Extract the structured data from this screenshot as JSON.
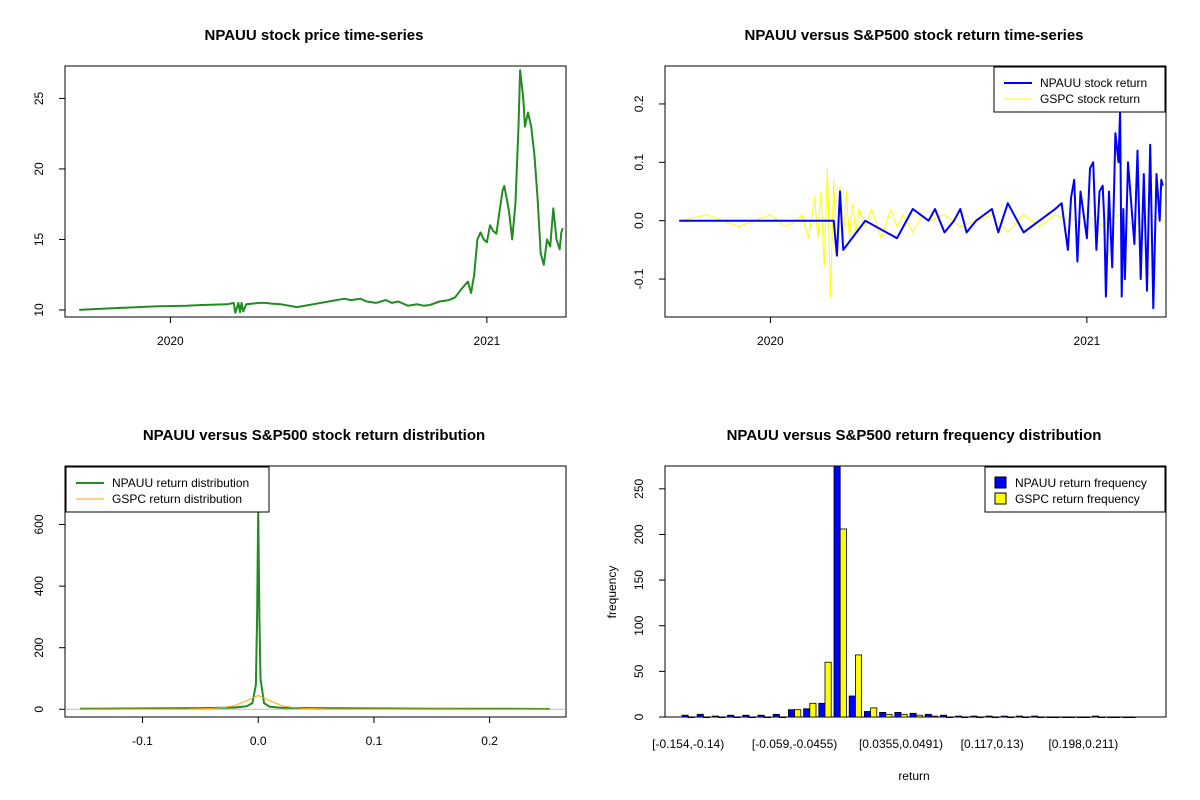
{
  "chart_data": [
    {
      "id": "p1",
      "type": "line",
      "title": "NPAUU stock price time-series",
      "xlabel": "",
      "ylabel": "",
      "xlim": [
        2019.667,
        2021.25
      ],
      "ylim": [
        9.5,
        27.3
      ],
      "x_ticks": [
        2020,
        2021
      ],
      "x_tick_labels": [
        "2020",
        "2021"
      ],
      "y_ticks": [
        10,
        15,
        20,
        25
      ],
      "series": [
        {
          "name": "NPAUU stock price",
          "color": "#228B22",
          "x": [
            2019.712,
            2019.75,
            2019.85,
            2019.95,
            2020.05,
            2020.1,
            2020.18,
            2020.2,
            2020.205,
            2020.215,
            2020.22,
            2020.225,
            2020.23,
            2020.24,
            2020.26,
            2020.28,
            2020.3,
            2020.32,
            2020.35,
            2020.4,
            2020.45,
            2020.5,
            2020.55,
            2020.57,
            2020.6,
            2020.62,
            2020.65,
            2020.68,
            2020.7,
            2020.72,
            2020.75,
            2020.78,
            2020.8,
            2020.82,
            2020.85,
            2020.88,
            2020.9,
            2020.92,
            2020.94,
            2020.95,
            2020.96,
            2020.97,
            2020.98,
            2020.99,
            2021.0,
            2021.01,
            2021.02,
            2021.03,
            2021.04,
            2021.05,
            2021.055,
            2021.06,
            2021.07,
            2021.08,
            2021.09,
            2021.1,
            2021.105,
            2021.11,
            2021.115,
            2021.12,
            2021.13,
            2021.14,
            2021.15,
            2021.16,
            2021.17,
            2021.18,
            2021.19,
            2021.2,
            2021.21,
            2021.22,
            2021.23,
            2021.235,
            2021.24
          ],
          "y": [
            10.0,
            10.05,
            10.15,
            10.25,
            10.3,
            10.35,
            10.4,
            10.5,
            9.8,
            10.5,
            9.85,
            10.5,
            9.9,
            10.4,
            10.45,
            10.5,
            10.5,
            10.45,
            10.4,
            10.2,
            10.4,
            10.6,
            10.8,
            10.7,
            10.8,
            10.6,
            10.5,
            10.7,
            10.5,
            10.6,
            10.3,
            10.4,
            10.3,
            10.35,
            10.6,
            10.7,
            10.9,
            11.5,
            12.0,
            11.2,
            12.5,
            15.0,
            15.5,
            15.0,
            14.8,
            16.0,
            15.6,
            15.4,
            17.0,
            18.5,
            18.8,
            18.2,
            17.0,
            15.0,
            17.5,
            23.0,
            27.0,
            26.0,
            25.0,
            23.0,
            24.0,
            23.0,
            21.0,
            18.0,
            14.0,
            13.2,
            15.0,
            14.5,
            17.2,
            15.0,
            14.3,
            15.5,
            15.8
          ]
        }
      ]
    },
    {
      "id": "p2",
      "type": "line",
      "title": "NPAUU versus S&P500 stock return time-series",
      "xlabel": "",
      "ylabel": "",
      "xlim": [
        2019.667,
        2021.25
      ],
      "ylim": [
        -0.165,
        0.265
      ],
      "x_ticks": [
        2020,
        2021
      ],
      "x_tick_labels": [
        "2020",
        "2021"
      ],
      "y_ticks": [
        -0.1,
        0.0,
        0.1,
        0.2
      ],
      "y_tick_labels": [
        "-0.1",
        "0.0",
        "0.1",
        "0.2"
      ],
      "legend": {
        "position": "top-right",
        "entries": [
          "NPAUU stock return",
          "GSPC stock return"
        ]
      },
      "series": [
        {
          "name": "NPAUU stock return",
          "color": "#0000FF",
          "x": [
            2019.712,
            2019.9,
            2020.1,
            2020.15,
            2020.2,
            2020.21,
            2020.22,
            2020.23,
            2020.3,
            2020.4,
            2020.45,
            2020.5,
            2020.52,
            2020.55,
            2020.58,
            2020.6,
            2020.62,
            2020.65,
            2020.7,
            2020.72,
            2020.75,
            2020.8,
            2020.85,
            2020.9,
            2020.92,
            2020.94,
            2020.95,
            2020.96,
            2020.97,
            2020.98,
            2020.99,
            2021.0,
            2021.01,
            2021.02,
            2021.03,
            2021.04,
            2021.05,
            2021.055,
            2021.06,
            2021.07,
            2021.08,
            2021.09,
            2021.1,
            2021.105,
            2021.11,
            2021.115,
            2021.12,
            2021.13,
            2021.14,
            2021.15,
            2021.16,
            2021.17,
            2021.18,
            2021.19,
            2021.2,
            2021.21,
            2021.22,
            2021.23,
            2021.235,
            2021.24
          ],
          "y": [
            0.0,
            0.0,
            0.0,
            0.0,
            0.0,
            -0.06,
            0.05,
            -0.05,
            0.0,
            -0.03,
            0.02,
            0.0,
            0.02,
            -0.02,
            0.0,
            0.02,
            -0.02,
            0.0,
            0.02,
            -0.02,
            0.03,
            -0.02,
            0.0,
            0.02,
            0.03,
            -0.05,
            0.04,
            0.07,
            -0.07,
            0.05,
            0.01,
            -0.03,
            0.09,
            0.1,
            -0.05,
            0.05,
            0.06,
            0.0,
            -0.13,
            0.05,
            -0.08,
            0.15,
            0.1,
            0.19,
            -0.13,
            0.02,
            -0.1,
            0.1,
            0.03,
            -0.04,
            0.12,
            -0.1,
            0.08,
            -0.12,
            0.13,
            -0.15,
            0.08,
            0.0,
            0.07,
            0.06
          ]
        },
        {
          "name": "GSPC stock return",
          "color": "#FFFF00",
          "x": [
            2019.712,
            2019.8,
            2019.9,
            2020.0,
            2020.05,
            2020.08,
            2020.1,
            2020.12,
            2020.14,
            2020.15,
            2020.16,
            2020.17,
            2020.18,
            2020.19,
            2020.2,
            2020.21,
            2020.22,
            2020.23,
            2020.24,
            2020.25,
            2020.26,
            2020.27,
            2020.28,
            2020.3,
            2020.32,
            2020.35,
            2020.38,
            2020.4,
            2020.42,
            2020.45,
            2020.48,
            2020.5,
            2020.55,
            2020.6,
            2020.65,
            2020.7,
            2020.75,
            2020.8,
            2020.85,
            2020.9,
            2020.95,
            2021.0,
            2021.05,
            2021.1,
            2021.15,
            2021.2,
            2021.24
          ],
          "y": [
            0.0,
            0.01,
            -0.01,
            0.01,
            -0.01,
            0.0,
            0.01,
            -0.03,
            0.04,
            -0.03,
            0.05,
            -0.08,
            0.09,
            -0.13,
            0.07,
            -0.06,
            0.06,
            -0.04,
            0.05,
            -0.03,
            0.03,
            -0.02,
            0.02,
            -0.01,
            0.02,
            -0.03,
            0.02,
            -0.01,
            0.01,
            -0.02,
            0.01,
            0.0,
            0.01,
            -0.01,
            0.0,
            0.01,
            -0.02,
            0.01,
            -0.01,
            0.01,
            0.0,
            0.01,
            -0.01,
            0.01,
            -0.01,
            0.01,
            0.0
          ]
        }
      ]
    },
    {
      "id": "p3",
      "type": "line",
      "title": "NPAUU versus S&P500 stock return distribution",
      "xlabel": "",
      "ylabel": "",
      "xlim": [
        -0.167,
        0.266
      ],
      "ylim": [
        -25,
        790
      ],
      "x_ticks": [
        -0.1,
        0.0,
        0.1,
        0.2
      ],
      "x_tick_labels": [
        "-0.1",
        "0.0",
        "0.1",
        "0.2"
      ],
      "y_ticks": [
        0,
        200,
        400,
        600
      ],
      "legend": {
        "position": "top-left",
        "entries": [
          "NPAUU return distribution",
          "GSPC return distribution"
        ]
      },
      "series": [
        {
          "name": "NPAUU return distribution",
          "color": "#228B22",
          "x": [
            -0.154,
            -0.1,
            -0.05,
            -0.02,
            -0.01,
            -0.005,
            -0.002,
            -0.001,
            0.0,
            0.001,
            0.002,
            0.005,
            0.01,
            0.02,
            0.05,
            0.1,
            0.15,
            0.2,
            0.252
          ],
          "y": [
            2,
            3,
            4,
            6,
            10,
            20,
            80,
            300,
            650,
            300,
            100,
            20,
            8,
            5,
            4,
            3,
            2,
            2,
            1
          ]
        },
        {
          "name": "GSPC return distribution",
          "color": "#FFA500",
          "x": [
            -0.154,
            -0.06,
            -0.04,
            -0.03,
            -0.02,
            -0.01,
            0.0,
            0.01,
            0.02,
            0.03,
            0.04,
            0.06,
            0.252
          ],
          "y": [
            0,
            1,
            3,
            6,
            12,
            28,
            45,
            28,
            12,
            6,
            3,
            1,
            0
          ]
        }
      ]
    },
    {
      "id": "p4",
      "type": "bar",
      "title": "NPAUU versus S&P500 return frequency distribution",
      "xlabel": "return",
      "ylabel": "frequency",
      "ylim": [
        0,
        275
      ],
      "y_ticks": [
        0,
        50,
        100,
        150,
        200,
        250
      ],
      "x_tick_labels": [
        "[-0.154,-0.14)",
        "[-0.059,-0.0455)",
        "[0.0355,0.0491)",
        "[0.117,0.13)",
        "[0.198,0.211)"
      ],
      "x_tick_indices": [
        0,
        7,
        14,
        20,
        26
      ],
      "legend": {
        "position": "top-right",
        "entries": [
          "NPAUU return frequency",
          "GSPC return frequency"
        ]
      },
      "series": [
        {
          "name": "NPAUU return frequency",
          "color": "#0000FF",
          "values": [
            2,
            3,
            1,
            2,
            2,
            2,
            3,
            8,
            9,
            15,
            290,
            23,
            6,
            5,
            5,
            4,
            3,
            2,
            1,
            1,
            1,
            1,
            1,
            1,
            0,
            0,
            0,
            1,
            0,
            0
          ]
        },
        {
          "name": "GSPC return frequency",
          "color": "#FFFF00",
          "values": [
            0,
            0,
            0,
            0,
            0,
            0,
            0,
            8,
            15,
            60,
            206,
            68,
            10,
            3,
            3,
            2,
            1,
            0,
            0,
            0,
            0,
            0,
            0,
            0,
            0,
            0,
            0,
            0,
            0,
            0
          ]
        }
      ]
    }
  ]
}
